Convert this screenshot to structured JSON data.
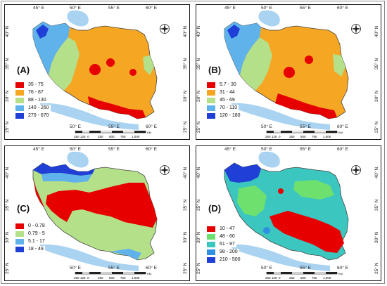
{
  "axes": {
    "lon_top": [
      "45° E",
      "50° E",
      "55° E",
      "60° E"
    ],
    "lon_bottom": [
      "50° E",
      "55° E",
      "60° E"
    ],
    "lat_left": [
      "40° N",
      "35° N",
      "30° N",
      "25° N"
    ],
    "lat_right": [
      "40° N",
      "35° N",
      "30° N",
      "25° N"
    ]
  },
  "scalebar": {
    "ticks": [
      "250",
      "125",
      "0",
      "250",
      "500",
      "750",
      "1,000"
    ],
    "unit": "KM"
  },
  "panels": [
    {
      "label": "(A)",
      "legend": [
        {
          "text": "35 - 75",
          "color": "#e60000"
        },
        {
          "text": "76 - 87",
          "color": "#f5a623"
        },
        {
          "text": "88 - 130",
          "color": "#b5e08a"
        },
        {
          "text": "140 - 260",
          "color": "#5fb3ea"
        },
        {
          "text": "270 - 670",
          "color": "#1f3fd6"
        }
      ]
    },
    {
      "label": "(B)",
      "legend": [
        {
          "text": "5.7 - 30",
          "color": "#e60000"
        },
        {
          "text": "31 - 44",
          "color": "#f5a623"
        },
        {
          "text": "45 - 69",
          "color": "#b5e08a"
        },
        {
          "text": "70 - 110",
          "color": "#5fb3ea"
        },
        {
          "text": "120 - 180",
          "color": "#1f3fd6"
        }
      ]
    },
    {
      "label": "(C)",
      "legend": [
        {
          "text": "0 - 0.78",
          "color": "#e60000"
        },
        {
          "text": "0.79 - 5",
          "color": "#b5e08a"
        },
        {
          "text": "5.1 - 17",
          "color": "#5fb3ea"
        },
        {
          "text": "18 - 49",
          "color": "#1f3fd6"
        }
      ]
    },
    {
      "label": "(D)",
      "legend": [
        {
          "text": "10 - 47",
          "color": "#e60000"
        },
        {
          "text": "48 - 60",
          "color": "#6ee06e"
        },
        {
          "text": "61 - 97",
          "color": "#3cc6c0"
        },
        {
          "text": "98 - 200",
          "color": "#2f8fe0"
        },
        {
          "text": "210 - 500",
          "color": "#1f3fd6"
        }
      ]
    }
  ],
  "colors": {
    "water": "#a9d3f0",
    "neighbor_land": "#ffffff",
    "border": "#555555"
  }
}
